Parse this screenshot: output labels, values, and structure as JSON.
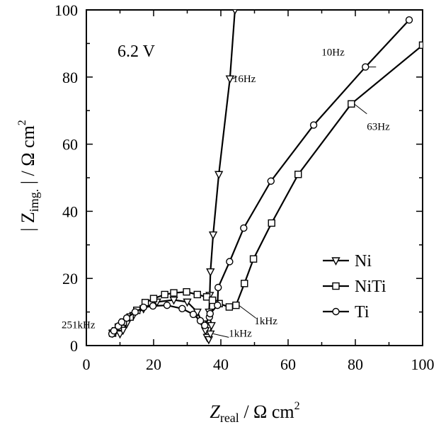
{
  "chart_data": {
    "type": "scatter",
    "xlim": [
      0,
      100
    ],
    "ylim": [
      0,
      100
    ],
    "x_ticks": [
      0,
      20,
      40,
      60,
      80,
      100
    ],
    "y_ticks": [
      0,
      20,
      40,
      60,
      80,
      100
    ],
    "x_tick_labels": [
      "0",
      "20",
      "40",
      "60",
      "80",
      "100"
    ],
    "y_tick_labels": [
      "0",
      "20",
      "40",
      "60",
      "80",
      "100"
    ],
    "xlabel_main": "Z",
    "xlabel_sub": "real",
    "xlabel_unit": " / Ω cm",
    "xlabel_sup": "2",
    "ylabel_main": "| Z",
    "ylabel_sub": "img.",
    "ylabel_unit": " | / Ω cm",
    "ylabel_sup": "2",
    "grid": false,
    "legend_position": "bottom-right",
    "voltage_label": "6.2 V",
    "series": [
      {
        "name": "Ni",
        "marker": "triangle-down",
        "points": [
          [
            7.8,
            3.7
          ],
          [
            8.8,
            4.5
          ],
          [
            10,
            3.5
          ],
          [
            10.9,
            4.6
          ],
          [
            12,
            6.5
          ],
          [
            14,
            9
          ],
          [
            17,
            11
          ],
          [
            21,
            13
          ],
          [
            26,
            13.6
          ],
          [
            30,
            13
          ],
          [
            33,
            10
          ],
          [
            34.6,
            6.5
          ],
          [
            35.4,
            4.5
          ],
          [
            35.9,
            2.5
          ],
          [
            36.4,
            1.8
          ],
          [
            36.9,
            3.5
          ],
          [
            37.2,
            6
          ],
          [
            36.5,
            10
          ],
          [
            36.7,
            15
          ],
          [
            36.9,
            22
          ],
          [
            37.7,
            33
          ],
          [
            39.4,
            51
          ],
          [
            42.7,
            79.5
          ],
          [
            44.2,
            100
          ]
        ]
      },
      {
        "name": "NiTi",
        "marker": "square",
        "points": [
          [
            7.8,
            3.7
          ],
          [
            9.5,
            5.5
          ],
          [
            11,
            7
          ],
          [
            13,
            8.5
          ],
          [
            15,
            10.5
          ],
          [
            17.5,
            12.8
          ],
          [
            20,
            14
          ],
          [
            23.3,
            15.2
          ],
          [
            26,
            15.7
          ],
          [
            29.8,
            16
          ],
          [
            33,
            15.2
          ],
          [
            35.8,
            14.5
          ],
          [
            37.5,
            13.5
          ],
          [
            39.5,
            12.5
          ],
          [
            42.5,
            11.5
          ],
          [
            44.5,
            12
          ],
          [
            47,
            18.5
          ],
          [
            49.7,
            25.8
          ],
          [
            55.1,
            36.5
          ],
          [
            63,
            51
          ],
          [
            78.8,
            72
          ],
          [
            100,
            89.5
          ]
        ]
      },
      {
        "name": "Ti",
        "marker": "circle",
        "points": [
          [
            7.6,
            3.5
          ],
          [
            8.2,
            4.4
          ],
          [
            9.5,
            5.8
          ],
          [
            10.5,
            7
          ],
          [
            12,
            8.2
          ],
          [
            14.5,
            10
          ],
          [
            17,
            11.4
          ],
          [
            19.8,
            11.8
          ],
          [
            24,
            12
          ],
          [
            28.5,
            11
          ],
          [
            31.8,
            9.3
          ],
          [
            33.9,
            7.4
          ],
          [
            35.2,
            6
          ],
          [
            36.6,
            8.5
          ],
          [
            36.8,
            9.5
          ],
          [
            39,
            12
          ],
          [
            39.2,
            17.3
          ],
          [
            42.6,
            25
          ],
          [
            46.8,
            35
          ],
          [
            54.9,
            49
          ],
          [
            67.6,
            65.7
          ],
          [
            83,
            83
          ],
          [
            96,
            97
          ]
        ]
      }
    ],
    "annotations": [
      {
        "text": "16Hz",
        "point": [
          42.7,
          79.5
        ]
      },
      {
        "text": "10Hz",
        "point": [
          83,
          83
        ]
      },
      {
        "text": "63Hz",
        "point": [
          78.8,
          72
        ]
      },
      {
        "text": "1kHz",
        "point": [
          44.5,
          12
        ]
      },
      {
        "text": "1kHz",
        "point": [
          36.9,
          3.5
        ]
      },
      {
        "text": "251kHz",
        "point": [
          7.8,
          3.7
        ]
      }
    ]
  }
}
